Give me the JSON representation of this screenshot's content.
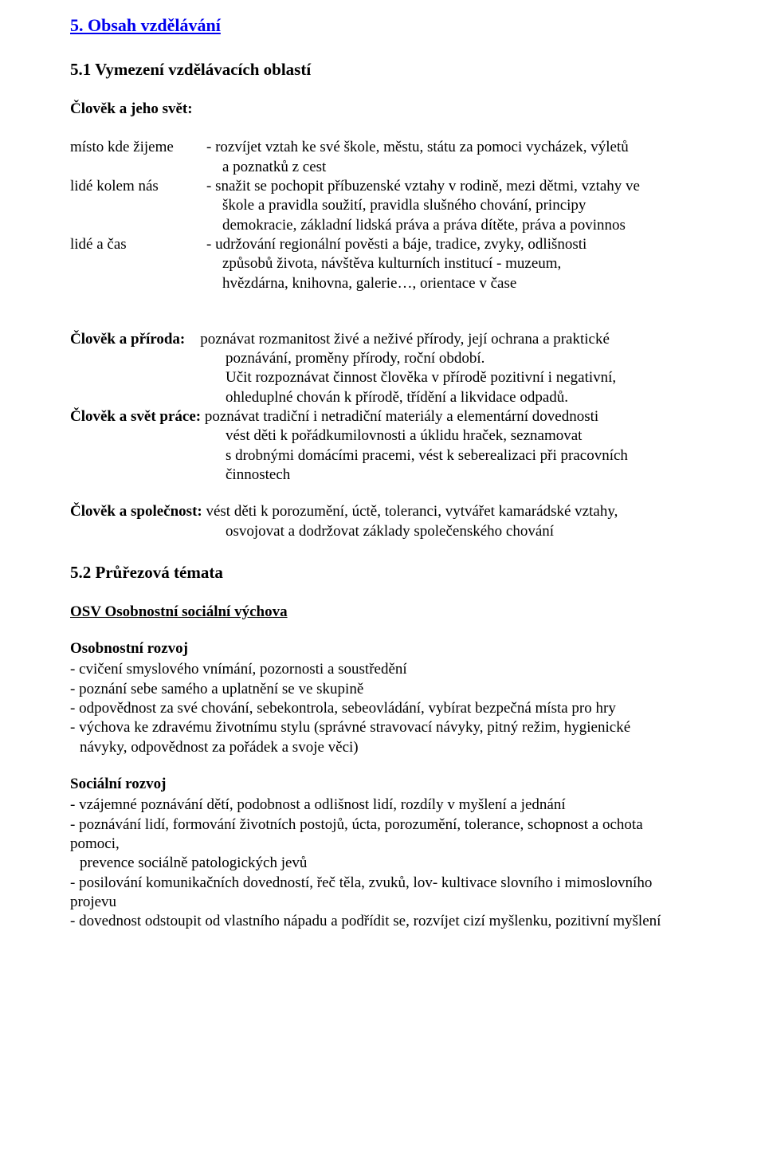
{
  "headings": {
    "main": "5. Obsah vzdělávání",
    "sub1": "5.1 Vymezení vzdělávacích oblastí",
    "area1": "Člověk a jeho svět:",
    "h52": "5.2 Průřezová témata",
    "osv": "OSV Osobnostní sociální výchova"
  },
  "defs": {
    "r1_label": "místo kde žijeme",
    "r1_l1": "- rozvíjet vztah ke své škole, městu, státu za pomoci vycházek, výletů",
    "r1_l2": "a  poznatků z cest",
    "r2_label": "lidé kolem nás",
    "r2_l1": "- snažit se pochopit příbuzenské vztahy v rodině, mezi dětmi, vztahy ve",
    "r2_l2": "škole a pravidla soužití, pravidla slušného chování, principy",
    "r2_l3": "demokracie, základní lidská práva a práva dítěte, práva a povinnos",
    "r3_label": "lidé a čas",
    "r3_l1": "- udržování regionální pověsti a báje, tradice, zvyky, odlišnosti",
    "r3_l2": "způsobů života, návštěva kulturních institucí - muzeum,",
    "r3_l3": "hvězdárna, knihovna, galerie…, orientace v čase"
  },
  "sec2": {
    "p1_label": "Člověk a příroda:",
    "p1_tail": "    poznávat rozmanitost živé a neživé přírody, její ochrana a praktické",
    "p1_c1": "poznávání, proměny přírody, roční období.",
    "p1_c2": "Učit rozpoznávat činnost člověka v přírodě pozitivní i negativní,",
    "p1_c3": "ohleduplné chován k přírodě, třídění a likvidace odpadů.",
    "p2_label": "Člověk a svět práce: ",
    "p2_tail": "poznávat tradiční i netradiční materiály a elementární dovednosti",
    "p2_c1": "vést děti k pořádkumilovnosti a úklidu hraček, seznamovat",
    "p2_c2": "s drobnými domácími pracemi, vést k seberealizaci při pracovních",
    "p2_c3": "činnostech",
    "p3_label": "Člověk a společnost: ",
    "p3_tail": "vést děti k porozumění, úctě, toleranci, vytvářet kamarádské vztahy,",
    "p3_c1": "osvojovat a  dodržovat základy společenského chování"
  },
  "osob": {
    "title": "Osobnostní rozvoj",
    "b1": "- cvičení smyslového vnímání, pozornosti a soustředění",
    "b2": "- poznání sebe samého a uplatnění se ve skupině",
    "b3": "- odpovědnost za své chování, sebekontrola, sebeovládání, vybírat bezpečná místa pro hry",
    "b4": "- výchova ke zdravému životnímu stylu (správné stravovací návyky, pitný režim, hygienické",
    "b4c": "návyky, odpovědnost za pořádek a svoje věci)"
  },
  "soc": {
    "title": "Sociální rozvoj",
    "b1": "- vzájemné poznávání dětí, podobnost a odlišnost lidí, rozdíly v myšlení a jednání",
    "b2": "- poznávání lidí, formování životních postojů, úcta, porozumění, tolerance, schopnost a ochota pomoci,",
    "b2c": "prevence sociálně patologických jevů",
    "b3": "- posilování komunikačních dovedností, řeč těla, zvuků, lov- kultivace slovního i mimoslovního projevu",
    "b4": "- dovednost odstoupit od vlastního nápadu a podřídit se, rozvíjet cizí myšlenku, pozitivní myšlení"
  }
}
